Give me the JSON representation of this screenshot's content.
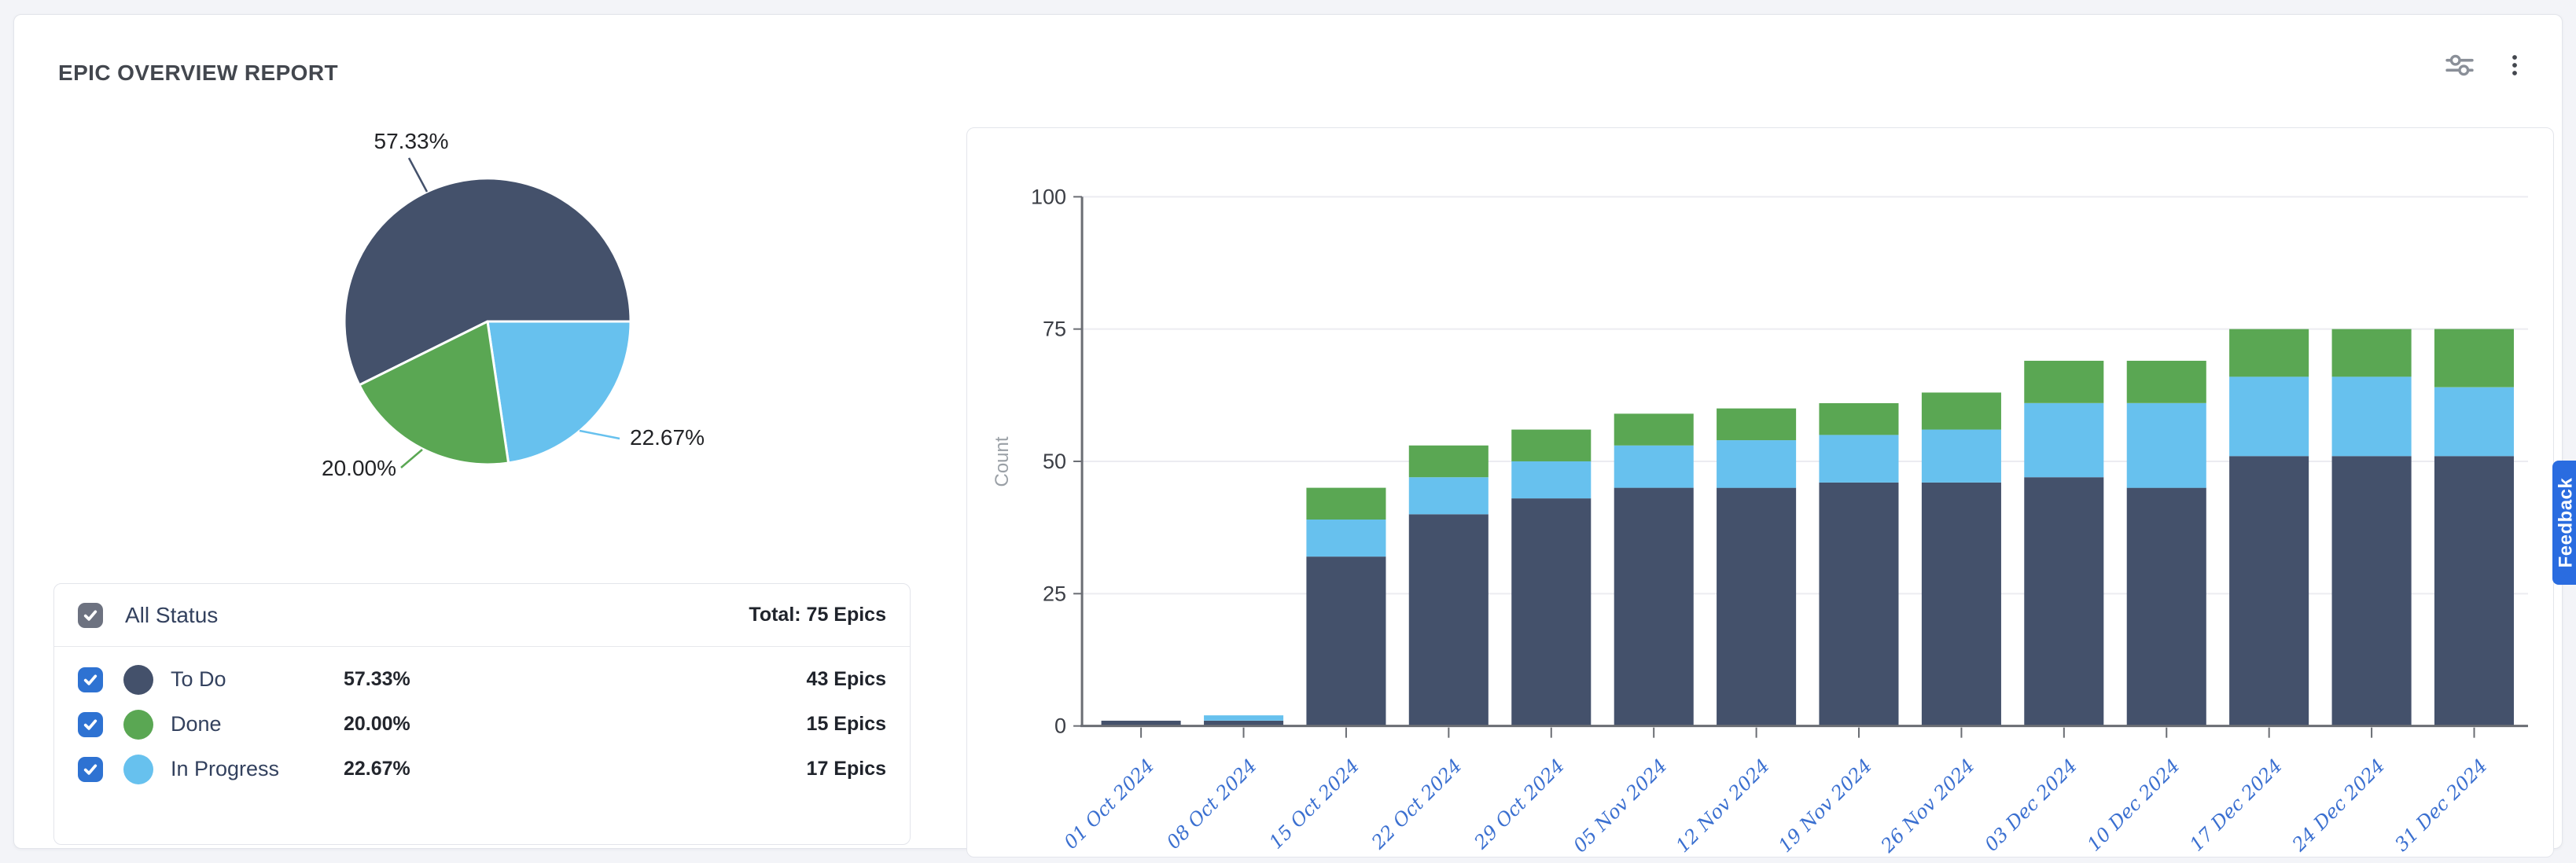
{
  "title": "EPIC OVERVIEW REPORT",
  "toolbar": {
    "filter_icon": "sliders-icon",
    "more_icon": "kebab-menu-icon"
  },
  "feedback": {
    "label": "Feedback",
    "color": "#2a6ce0"
  },
  "colors": {
    "todo": "#44516b",
    "done": "#5aa753",
    "in_progress": "#67c1ee",
    "checkbox_blue": "#2e72d2",
    "checkbox_gray": "#6d7280",
    "date_label_blue": "#3a6fd0",
    "axis_text": "#3b3e45",
    "axis_line": "#6a6d73",
    "gridline": "#ececf1",
    "count_label": "#9aa0a6"
  },
  "legend": {
    "header": {
      "label": "All Status",
      "total": "Total: 75 Epics",
      "checked": true
    },
    "rows": [
      {
        "label": "To Do",
        "percent": "57.33%",
        "count": "43 Epics",
        "color": "#44516b",
        "checked": true
      },
      {
        "label": "Done",
        "percent": "20.00%",
        "count": "15 Epics",
        "color": "#5aa753",
        "checked": true
      },
      {
        "label": "In Progress",
        "percent": "22.67%",
        "count": "17 Epics",
        "color": "#67c1ee",
        "checked": true
      }
    ]
  },
  "chart_data": [
    {
      "type": "pie",
      "title": "Epic status distribution",
      "unit": "percent",
      "start_angle_deg": 153.6,
      "direction": "clockwise",
      "slices": [
        {
          "name": "To Do",
          "value": 57.33,
          "label": "57.33%",
          "color": "#44516b"
        },
        {
          "name": "In Progress",
          "value": 22.67,
          "label": "22.67%",
          "color": "#67c1ee"
        },
        {
          "name": "Done",
          "value": 20.0,
          "label": "20.00%",
          "color": "#5aa753"
        }
      ]
    },
    {
      "type": "bar",
      "stacked": true,
      "title": "Epic count over time",
      "xlabel": "",
      "ylabel": "Count",
      "ylim": [
        0,
        100
      ],
      "yticks": [
        0,
        25,
        50,
        75,
        100
      ],
      "grid": true,
      "legend_position": "none",
      "categories": [
        "01 Oct 2024",
        "08 Oct 2024",
        "15 Oct 2024",
        "22 Oct 2024",
        "29 Oct 2024",
        "05 Nov 2024",
        "12 Nov 2024",
        "19 Nov 2024",
        "26 Nov 2024",
        "03 Dec 2024",
        "10 Dec 2024",
        "17 Dec 2024",
        "24 Dec 2024",
        "31 Dec 2024"
      ],
      "series": [
        {
          "name": "To Do",
          "color": "#44516b",
          "values": [
            1,
            1,
            32,
            40,
            43,
            45,
            45,
            46,
            46,
            47,
            45,
            51,
            51,
            51
          ]
        },
        {
          "name": "In Progress",
          "color": "#67c1ee",
          "values": [
            0,
            1,
            7,
            7,
            7,
            8,
            9,
            9,
            10,
            14,
            16,
            15,
            15,
            13
          ]
        },
        {
          "name": "Done",
          "color": "#5aa753",
          "values": [
            0,
            0,
            6,
            6,
            6,
            6,
            6,
            6,
            7,
            8,
            8,
            9,
            9,
            11
          ]
        }
      ],
      "totals": [
        1,
        2,
        45,
        53,
        56,
        59,
        60,
        61,
        63,
        69,
        69,
        75,
        75,
        75
      ]
    }
  ]
}
